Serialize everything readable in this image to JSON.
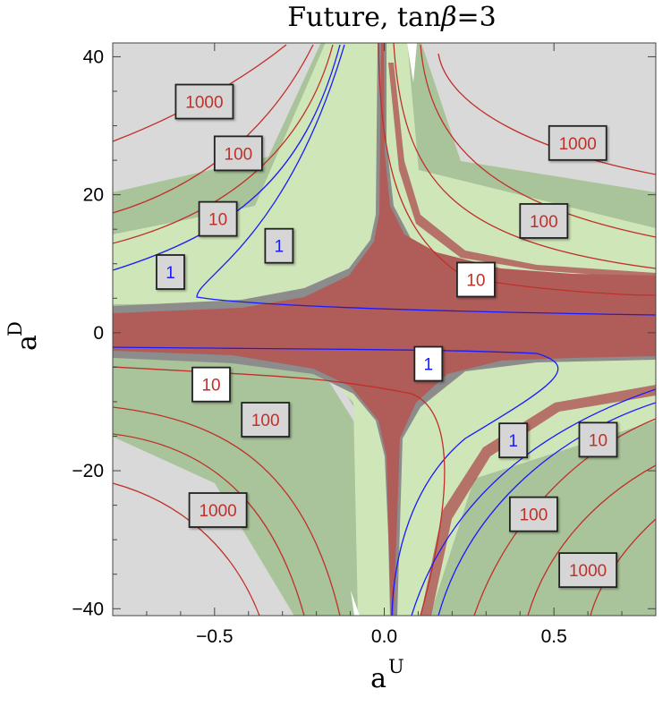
{
  "chart_data": {
    "type": "contour",
    "title": "Future, tanβ=3",
    "title_parts": [
      "Future, tan",
      "β",
      "=3"
    ],
    "xlabel": "a",
    "xlabel_sup": "U",
    "ylabel": "a",
    "ylabel_sup": "D",
    "xlim": [
      -0.8,
      0.8
    ],
    "ylim": [
      -41,
      42
    ],
    "xticks": [
      {
        "value": -0.5,
        "label": "−0.5"
      },
      {
        "value": 0.0,
        "label": "0.0"
      },
      {
        "value": 0.5,
        "label": "0.5"
      }
    ],
    "yticks": [
      {
        "value": 40,
        "label": "40"
      },
      {
        "value": 20,
        "label": "20"
      },
      {
        "value": 0,
        "label": "0"
      },
      {
        "value": -20,
        "label": "−20"
      },
      {
        "value": -40,
        "label": "−40"
      }
    ],
    "regions": [
      {
        "name": "gray-excluded",
        "color": "#d9d9d9"
      },
      {
        "name": "dark-green-band",
        "color": "#a9c49a"
      },
      {
        "name": "light-green-band",
        "color": "#cfe6b8"
      },
      {
        "name": "gray-band",
        "color": "#8c8c8c"
      },
      {
        "name": "red-allowed",
        "color": "#b05d5a"
      }
    ],
    "contour_labels": [
      {
        "text": "1000",
        "x": -0.53,
        "y": 33.5,
        "color": "#c0302a",
        "highlight": false
      },
      {
        "text": "100",
        "x": -0.43,
        "y": 26,
        "color": "#c0302a",
        "highlight": false
      },
      {
        "text": "10",
        "x": -0.49,
        "y": 16.5,
        "color": "#c0302a",
        "highlight": false
      },
      {
        "text": "1",
        "x": -0.63,
        "y": 8.8,
        "color": "#1a1aff",
        "highlight": false
      },
      {
        "text": "1",
        "x": -0.31,
        "y": 12.6,
        "color": "#1a1aff",
        "highlight": false
      },
      {
        "text": "1000",
        "x": 0.57,
        "y": 27.5,
        "color": "#c0302a",
        "highlight": false
      },
      {
        "text": "100",
        "x": 0.47,
        "y": 16.2,
        "color": "#c0302a",
        "highlight": false
      },
      {
        "text": "10",
        "x": 0.27,
        "y": 7.7,
        "color": "#c0302a",
        "highlight": true
      },
      {
        "text": "1",
        "x": 0.13,
        "y": -4.5,
        "color": "#1a1aff",
        "highlight": true
      },
      {
        "text": "10",
        "x": -0.51,
        "y": -7.5,
        "color": "#c0302a",
        "highlight": true
      },
      {
        "text": "100",
        "x": -0.35,
        "y": -12.6,
        "color": "#c0302a",
        "highlight": false
      },
      {
        "text": "1000",
        "x": -0.49,
        "y": -25.7,
        "color": "#c0302a",
        "highlight": false
      },
      {
        "text": "1",
        "x": 0.38,
        "y": -15.6,
        "color": "#1a1aff",
        "highlight": false
      },
      {
        "text": "10",
        "x": 0.63,
        "y": -15.5,
        "color": "#c0302a",
        "highlight": false
      },
      {
        "text": "100",
        "x": 0.44,
        "y": -26.3,
        "color": "#c0302a",
        "highlight": false
      },
      {
        "text": "1000",
        "x": 0.6,
        "y": -34.4,
        "color": "#c0302a",
        "highlight": false
      }
    ]
  }
}
